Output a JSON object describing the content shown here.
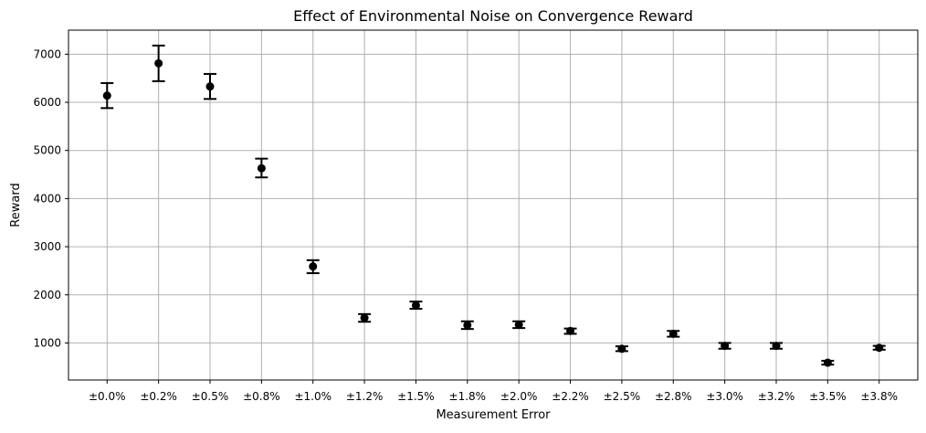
{
  "chart_data": {
    "type": "scatter",
    "title": "Effect of Environmental Noise on Convergence Reward",
    "xlabel": "Measurement Error",
    "ylabel": "Reward",
    "categories": [
      "±0.0%",
      "±0.2%",
      "±0.5%",
      "±0.8%",
      "±1.0%",
      "±1.2%",
      "±1.5%",
      "±1.8%",
      "±2.0%",
      "±2.2%",
      "±2.5%",
      "±2.8%",
      "±3.0%",
      "±3.2%",
      "±3.5%",
      "±3.8%"
    ],
    "values": [
      6140,
      6810,
      6330,
      4630,
      2590,
      1520,
      1780,
      1370,
      1380,
      1250,
      880,
      1190,
      940,
      940,
      590,
      900
    ],
    "error_lower": [
      5880,
      6440,
      6070,
      4440,
      2450,
      1440,
      1710,
      1290,
      1310,
      1190,
      830,
      1130,
      880,
      880,
      550,
      860
    ],
    "error_upper": [
      6400,
      7180,
      6590,
      4830,
      2720,
      1600,
      1860,
      1450,
      1450,
      1300,
      930,
      1250,
      1000,
      1000,
      630,
      940
    ],
    "ylim": [
      230,
      7500
    ],
    "yticks": [
      1000,
      2000,
      3000,
      4000,
      5000,
      6000,
      7000
    ],
    "ytick_labels": [
      "1000",
      "2000",
      "3000",
      "4000",
      "5000",
      "6000",
      "7000"
    ],
    "grid": true,
    "marker_color": "#000000",
    "grid_color": "#b0b0b0"
  }
}
